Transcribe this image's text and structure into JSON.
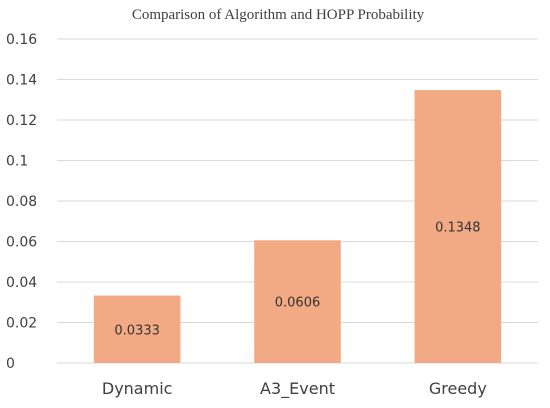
{
  "chart_data": {
    "type": "bar",
    "title": "Comparison of Algorithm and HOPP Probability",
    "categories": [
      "Dynamic",
      "A3_Event",
      "Greedy"
    ],
    "values": [
      0.0333,
      0.0606,
      0.1348
    ],
    "data_labels": [
      "0.0333",
      "0.0606",
      "0.1348"
    ],
    "ylim": [
      0,
      0.16
    ],
    "y_ticks": [
      0,
      0.02,
      0.04,
      0.06,
      0.08,
      0.1,
      0.12,
      0.14,
      0.16
    ],
    "y_tick_labels": [
      "0",
      "0.02",
      "0.04",
      "0.06",
      "0.08",
      "0.1",
      "0.12",
      "0.14",
      "0.16"
    ],
    "xlabel": "",
    "ylabel": "",
    "grid": true,
    "legend": "none",
    "colors": {
      "bar": "#F2AA84",
      "grid": "#D9D9D9",
      "text": "#404040"
    }
  }
}
